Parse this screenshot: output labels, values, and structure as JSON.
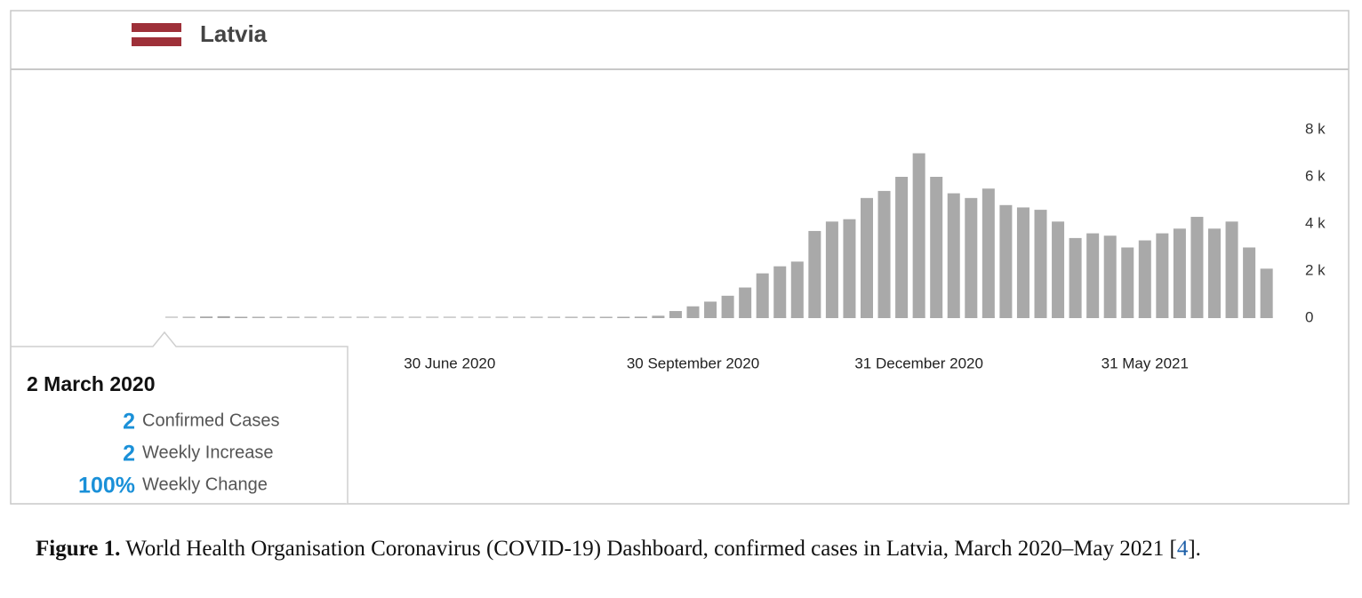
{
  "chart_data": {
    "type": "bar",
    "title": "Latvia",
    "categories": [
      null,
      null,
      null,
      null,
      null,
      null,
      null,
      null,
      null,
      null,
      null,
      null,
      null,
      null,
      null,
      null,
      "30 June 2020",
      null,
      null,
      null,
      null,
      null,
      null,
      null,
      null,
      null,
      null,
      null,
      null,
      null,
      "30 September 2020",
      null,
      null,
      null,
      null,
      null,
      null,
      null,
      null,
      null,
      null,
      null,
      null,
      "31 December 2020",
      null,
      null,
      null,
      null,
      null,
      null,
      null,
      null,
      null,
      null,
      null,
      null,
      "31 May 2021",
      null,
      null,
      null,
      null,
      null,
      null,
      null
    ],
    "values": [
      2,
      20,
      60,
      80,
      40,
      30,
      25,
      20,
      15,
      10,
      10,
      8,
      5,
      5,
      5,
      4,
      5,
      5,
      6,
      8,
      10,
      12,
      15,
      20,
      25,
      30,
      40,
      50,
      100,
      300,
      500,
      700,
      950,
      1300,
      1900,
      2200,
      2400,
      3700,
      4100,
      4200,
      5100,
      5400,
      6000,
      7000,
      6000,
      5300,
      5100,
      5500,
      4800,
      4700,
      4600,
      4100,
      3400,
      3600,
      3500,
      3000,
      3300,
      3600,
      3800,
      4300,
      3800,
      4100,
      3000,
      2100
    ],
    "color": "#a9a9a9",
    "ylim": [
      0,
      8000
    ],
    "yticks": [
      0,
      {
        "value": 2000,
        "label": "2 k"
      },
      {
        "value": 4000,
        "label": "4 k"
      },
      {
        "value": 6000,
        "label": "6 k"
      },
      {
        "value": 8000,
        "label": "8 k"
      }
    ],
    "grid": false,
    "tooltip": {
      "title": "2 March 2020",
      "items": [
        {
          "value": "2",
          "label": "Confirmed Cases"
        },
        {
          "value": "2",
          "label": "Weekly Increase"
        },
        {
          "value": "100%",
          "label": "Weekly Change"
        }
      ]
    }
  },
  "caption": {
    "label": "Figure 1.",
    "text": "World Health Organisation Coronavirus (COVID-19) Dashboard, confirmed cases in Latvia, March 2020–May 2021 [",
    "ref": "4",
    "end": "]."
  }
}
